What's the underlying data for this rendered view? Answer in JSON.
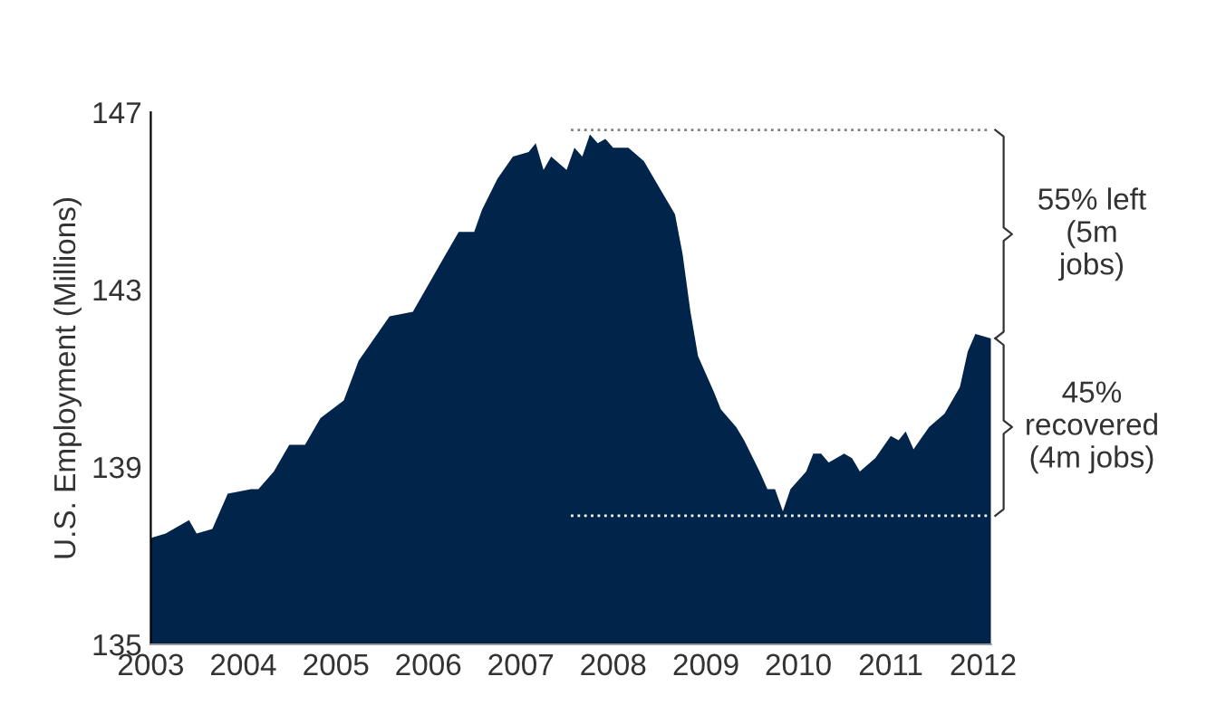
{
  "chart_data": {
    "type": "area",
    "ylabel": "U.S. Employment (Millions)",
    "x": [
      "2003-01",
      "2003-03",
      "2003-04",
      "2003-06",
      "2003-07",
      "2003-09",
      "2003-11",
      "2004-02",
      "2004-03",
      "2004-05",
      "2004-07",
      "2004-09",
      "2004-11",
      "2005-02",
      "2005-04",
      "2005-06",
      "2005-08",
      "2005-11",
      "2005-12",
      "2006-03",
      "2006-05",
      "2006-07",
      "2006-08",
      "2006-10",
      "2006-12",
      "2007-02",
      "2007-03",
      "2007-04",
      "2007-05",
      "2007-07",
      "2007-08",
      "2007-09",
      "2007-10",
      "2007-11",
      "2007-12",
      "2008-01",
      "2008-03",
      "2008-05",
      "2008-07",
      "2008-09",
      "2008-10",
      "2008-11",
      "2008-12",
      "2009-02",
      "2009-03",
      "2009-05",
      "2009-06",
      "2009-08",
      "2009-09",
      "2009-10",
      "2009-11",
      "2009-12",
      "2010-02",
      "2010-03",
      "2010-04",
      "2010-05",
      "2010-07",
      "2010-08",
      "2010-09",
      "2010-11",
      "2011-01",
      "2011-02",
      "2011-03",
      "2011-04",
      "2011-06",
      "2011-08",
      "2011-10",
      "2011-11",
      "2011-12",
      "2012-02"
    ],
    "series": [
      {
        "color": "#00244a",
        "values": [
          137.4,
          137.5,
          137.6,
          137.8,
          137.5,
          137.6,
          138.4,
          138.5,
          138.5,
          138.9,
          139.5,
          139.5,
          140.1,
          140.5,
          141.4,
          141.9,
          142.4,
          142.5,
          142.8,
          143.7,
          144.3,
          144.3,
          144.8,
          145.5,
          146.0,
          146.1,
          146.3,
          145.7,
          146.0,
          145.7,
          146.2,
          146.0,
          146.5,
          146.3,
          146.4,
          146.2,
          146.2,
          145.9,
          145.3,
          144.7,
          143.8,
          142.5,
          141.5,
          140.7,
          140.3,
          139.9,
          139.6,
          138.9,
          138.5,
          138.5,
          138.0,
          138.5,
          138.9,
          139.3,
          139.3,
          139.1,
          139.3,
          139.2,
          138.9,
          139.2,
          139.7,
          139.6,
          139.8,
          139.4,
          139.9,
          140.2,
          140.8,
          141.6,
          142.0,
          141.9
        ]
      }
    ],
    "xlim": [
      "2003-01",
      "2012-02"
    ],
    "xticks": [
      {
        "value": "2003-01",
        "label": "2003"
      },
      {
        "value": "2004-01",
        "label": "2004"
      },
      {
        "value": "2005-01",
        "label": "2005"
      },
      {
        "value": "2006-01",
        "label": "2006"
      },
      {
        "value": "2007-01",
        "label": "2007"
      },
      {
        "value": "2008-01",
        "label": "2008"
      },
      {
        "value": "2009-01",
        "label": "2009"
      },
      {
        "value": "2010-01",
        "label": "2010"
      },
      {
        "value": "2011-01",
        "label": "2011"
      },
      {
        "value": "2012-01",
        "label": "2012"
      }
    ],
    "ylim": [
      135,
      147
    ],
    "yticks": [
      135,
      139,
      143,
      147
    ],
    "grid": false,
    "ref_lines": [
      {
        "axis": "y",
        "value": 146.6,
        "color": "#808080",
        "line_style": "dotted"
      },
      {
        "axis": "y",
        "value": 137.9,
        "color": "#ffffff",
        "line_style": "dotted"
      }
    ],
    "annotations": [
      "55% left\n(5m\njobs)",
      "45%\nrecovered\n(4m jobs)"
    ]
  }
}
